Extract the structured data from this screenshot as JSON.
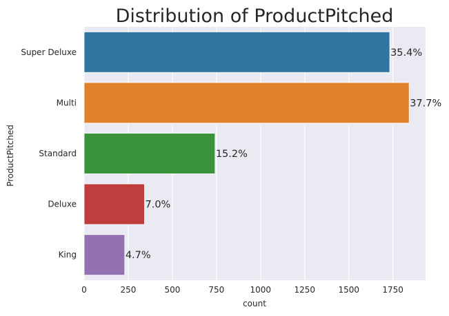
{
  "chart_data": {
    "type": "bar",
    "orientation": "horizontal",
    "title": "Distribution of ProductPitched",
    "xlabel": "count",
    "ylabel": "ProductPitched",
    "categories": [
      "Super Deluxe",
      "Multi",
      "Standard",
      "Deluxe",
      "King"
    ],
    "values": [
      1732,
      1842,
      742,
      342,
      230
    ],
    "data_labels": [
      "35.4%",
      "37.7%",
      "15.2%",
      "7.0%",
      "4.7%"
    ],
    "colors": [
      "#3274a1",
      "#e1812c",
      "#3a923a",
      "#c03d3e",
      "#9372b2"
    ],
    "xlim": [
      0,
      1935
    ],
    "xticks": [
      0,
      250,
      500,
      750,
      1000,
      1250,
      1500,
      1750
    ],
    "grid": true,
    "plot_background": "#eaeaf2",
    "grid_color": "#ffffff"
  }
}
